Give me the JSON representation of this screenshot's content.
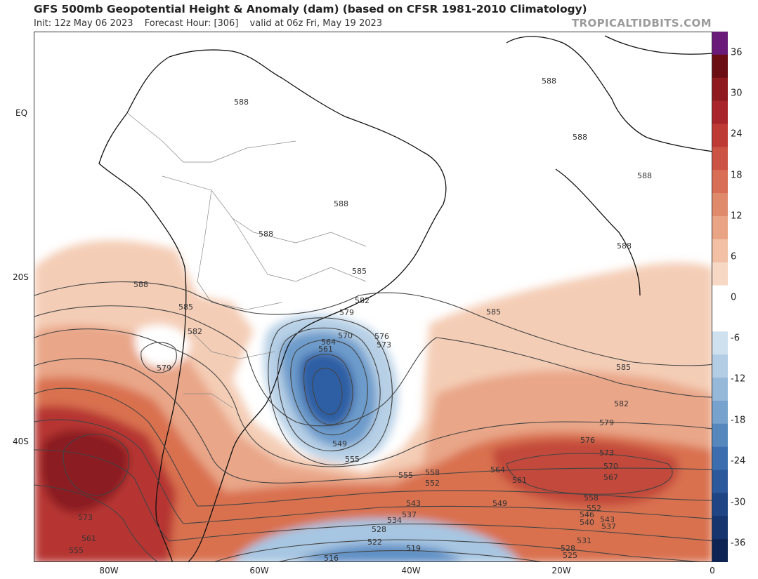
{
  "header": {
    "title": "GFS 500mb Geopotential Height & Anomaly (dam) (based on CFSR 1981-2010 Climatology)",
    "init": "Init: 12z May 06 2023",
    "forecast_hour": "Forecast Hour: [306]",
    "valid": "valid at 06z Fri, May 19 2023",
    "brand": "TROPICALTIDBITS.COM"
  },
  "axes": {
    "lat_labels": [
      "EQ",
      "20S",
      "40S"
    ],
    "lon_labels": [
      "80W",
      "60W",
      "40W",
      "20W",
      "0"
    ]
  },
  "colorbar": {
    "labels": [
      "36",
      "30",
      "24",
      "18",
      "12",
      "6",
      "0",
      "-6",
      "-12",
      "-18",
      "-24",
      "-30",
      "-36"
    ],
    "colors": [
      "#6a1b7a",
      "#6b0e14",
      "#8e1a20",
      "#a8262b",
      "#be3a35",
      "#cc5444",
      "#d86e55",
      "#e08a6c",
      "#e9a486",
      "#f1c0a5",
      "#f6d8c4",
      "#ffffff",
      "#ffffff",
      "#cfe0ee",
      "#b3cde4",
      "#96b9da",
      "#76a2cd",
      "#5688be",
      "#3c6eaf",
      "#2c599b",
      "#1f4585",
      "#16346d",
      "#0e2452"
    ]
  },
  "contour_labels": [
    {
      "v": "588"
    },
    {
      "v": "588"
    },
    {
      "v": "588"
    },
    {
      "v": "588"
    },
    {
      "v": "588"
    },
    {
      "v": "588"
    },
    {
      "v": "588"
    },
    {
      "v": "588"
    },
    {
      "v": "585"
    },
    {
      "v": "585"
    },
    {
      "v": "585"
    },
    {
      "v": "585"
    },
    {
      "v": "582"
    },
    {
      "v": "582"
    },
    {
      "v": "582"
    },
    {
      "v": "579"
    },
    {
      "v": "579"
    },
    {
      "v": "579"
    },
    {
      "v": "576"
    },
    {
      "v": "576"
    },
    {
      "v": "573"
    },
    {
      "v": "573"
    },
    {
      "v": "570"
    },
    {
      "v": "570"
    },
    {
      "v": "567"
    },
    {
      "v": "564"
    },
    {
      "v": "564"
    },
    {
      "v": "561"
    },
    {
      "v": "561"
    },
    {
      "v": "558"
    },
    {
      "v": "558"
    },
    {
      "v": "555"
    },
    {
      "v": "555"
    },
    {
      "v": "555"
    },
    {
      "v": "552"
    },
    {
      "v": "552"
    },
    {
      "v": "549"
    },
    {
      "v": "549"
    },
    {
      "v": "546"
    },
    {
      "v": "543"
    },
    {
      "v": "543"
    },
    {
      "v": "540"
    },
    {
      "v": "537"
    },
    {
      "v": "537"
    },
    {
      "v": "534"
    },
    {
      "v": "531"
    },
    {
      "v": "528"
    },
    {
      "v": "528"
    },
    {
      "v": "525"
    },
    {
      "v": "522"
    },
    {
      "v": "519"
    },
    {
      "v": "516"
    },
    {
      "v": "573"
    },
    {
      "v": "576"
    },
    {
      "v": "579"
    },
    {
      "v": "570"
    },
    {
      "v": "567"
    },
    {
      "v": "564"
    },
    {
      "v": "561"
    },
    {
      "v": "558"
    },
    {
      "v": "555"
    },
    {
      "v": "552"
    },
    {
      "v": "549"
    },
    {
      "v": "546"
    },
    {
      "v": "543"
    },
    {
      "v": "561"
    },
    {
      "v": "552"
    },
    {
      "v": "546"
    }
  ]
}
